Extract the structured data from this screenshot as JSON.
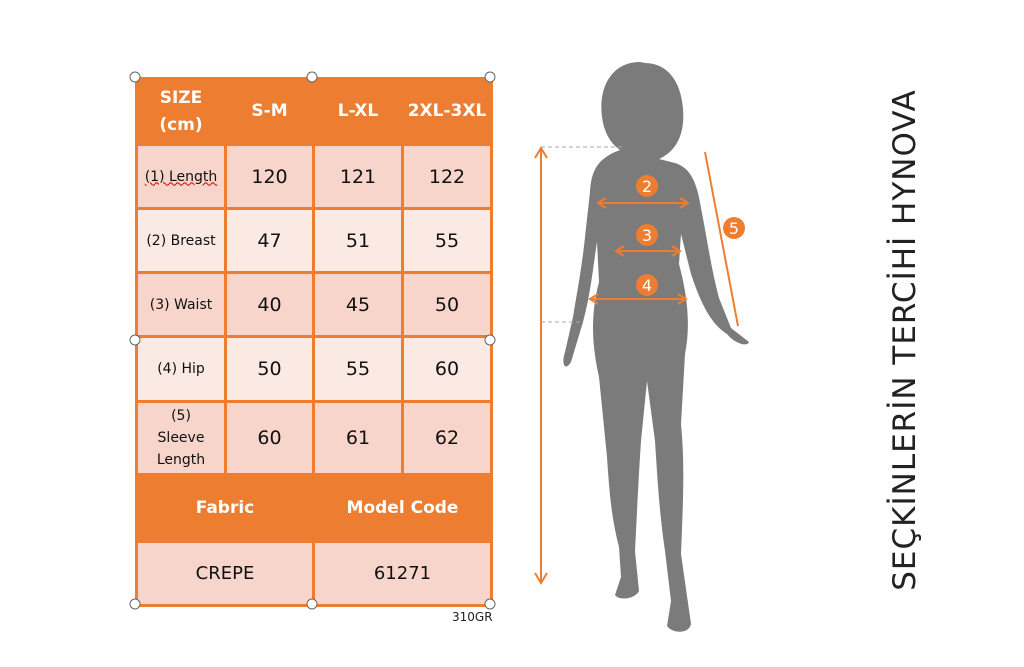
{
  "table": {
    "headers": [
      "SIZE (cm)",
      "S-M",
      "L-XL",
      "2XL-3XL"
    ],
    "rows": [
      {
        "label": "(1) Length",
        "values": [
          "120",
          "121",
          "122"
        ]
      },
      {
        "label": "(2) Breast",
        "values": [
          "47",
          "51",
          "55"
        ]
      },
      {
        "label": "(3) Waist",
        "values": [
          "40",
          "45",
          "50"
        ]
      },
      {
        "label": "(4) Hip",
        "values": [
          "50",
          "55",
          "60"
        ]
      },
      {
        "label": "(5) Sleeve Length",
        "values": [
          "60",
          "61",
          "62"
        ]
      }
    ],
    "fabric_label": "Fabric",
    "model_code_label": "Model Code",
    "fabric": "CREPE",
    "model_code": "61271"
  },
  "product_code": "310GR",
  "watermark": "SEÇKİNLERİN TERCİHİ HYNOVA",
  "markers": [
    "2",
    "3",
    "4",
    "5"
  ],
  "colors": {
    "accent": "#ed7d31",
    "row_dark": "#f8d5cb",
    "row_light": "#fbe9e4",
    "silhouette": "#7a7a7a"
  }
}
